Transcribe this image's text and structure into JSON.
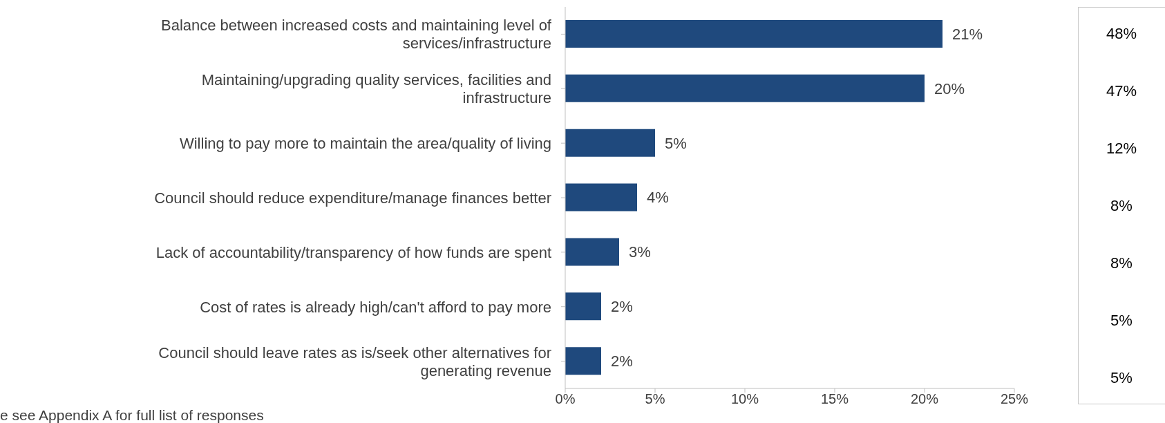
{
  "chart_data": {
    "type": "bar",
    "orientation": "horizontal",
    "categories": [
      "Balance between increased costs and maintaining level of services/infrastructure",
      "Maintaining/upgrading quality services, facilities and infrastructure",
      "Willing to pay more to maintain the area/quality of living",
      "Council should reduce expenditure/manage finances better",
      "Lack of accountability/transparency of how funds are spent",
      "Cost of rates is already high/can't afford to pay more",
      "Council should leave rates as is/seek other alternatives for generating revenue"
    ],
    "values": [
      21,
      20,
      5,
      4,
      3,
      2,
      2
    ],
    "value_labels": [
      "21%",
      "20%",
      "5%",
      "4%",
      "3%",
      "2%",
      "2%"
    ],
    "color": "#1f497d",
    "xlim": [
      0,
      25
    ],
    "xticks": [
      {
        "value": 0,
        "label": "0%"
      },
      {
        "value": 5,
        "label": "5%"
      },
      {
        "value": 10,
        "label": "10%"
      },
      {
        "value": 15,
        "label": "15%"
      },
      {
        "value": 20,
        "label": "20%"
      },
      {
        "value": 25,
        "label": "25%"
      }
    ],
    "grid": false,
    "legend": false,
    "annotations": [
      "48%",
      "47%",
      "12%",
      "8%",
      "8%",
      "5%",
      "5%",
      "e see Appendix A for full list of responses"
    ]
  }
}
